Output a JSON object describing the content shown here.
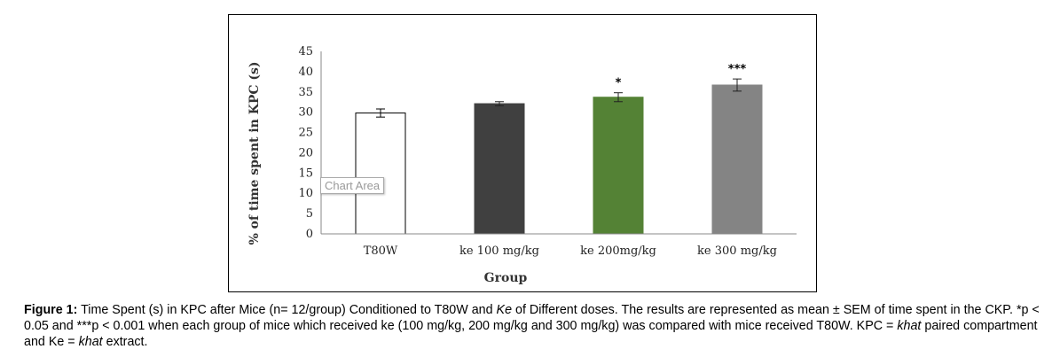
{
  "chart_data": {
    "type": "bar",
    "categories": [
      "T80W",
      "ke 100 mg/kg",
      "ke 200mg/kg",
      "ke 300 mg/kg"
    ],
    "values": [
      29.8,
      32.1,
      33.7,
      36.7
    ],
    "errors": [
      1.0,
      0.5,
      1.1,
      1.5
    ],
    "bar_colors": [
      "#ffffff",
      "#404040",
      "#548235",
      "#848484"
    ],
    "significance": [
      "",
      "",
      "*",
      "***"
    ],
    "xlabel": "Group",
    "ylabel": "% of time spent in KPC (s)",
    "ylim": [
      0,
      45
    ],
    "yticks": [
      0,
      5,
      10,
      15,
      20,
      25,
      30,
      35,
      40,
      45
    ],
    "grid": false,
    "legend": "none"
  },
  "tooltip": {
    "text": "Chart Area"
  },
  "caption": {
    "label": "Figure 1:",
    "text_1": " Time Spent (s) in KPC after Mice (n= 12/group) Conditioned to T80W and ",
    "ke_italic": "Ke",
    "text_2": " of Different doses. The results are represented as mean ± SEM of time spent in the CKP. *p < 0.05 and ***p < 0.001 when each group of mice which received ke (100 mg/kg, 200 mg/kg and 300 mg/kg) was compared with mice received T80W. KPC = ",
    "khat_italic_1": "khat",
    "text_3": " paired compartment and Ke = ",
    "khat_italic_2": "khat",
    "text_4": " extract."
  }
}
